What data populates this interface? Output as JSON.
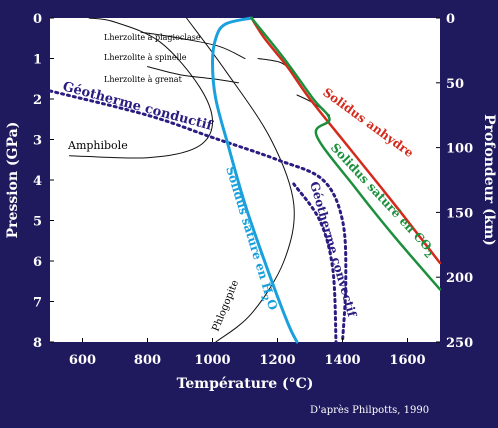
{
  "chart_data": {
    "type": "phase-diagram",
    "xlabel": "Température (°C)",
    "ylabel_left": "Pression (GPa)",
    "ylabel_right": "Profondeur (km)",
    "x_ticks": [
      "600",
      "800",
      "1000",
      "1200",
      "1400",
      "1600"
    ],
    "y_left_ticks": [
      "0",
      "1",
      "2",
      "3",
      "4",
      "5",
      "6",
      "7",
      "8"
    ],
    "y_right_ticks": [
      "0",
      "50",
      "100",
      "150",
      "200",
      "250"
    ],
    "xlim": [
      500,
      1700
    ],
    "ylim": [
      0,
      8
    ],
    "depth_lim": [
      0,
      250
    ],
    "credit": "D'après Philpotts, 1990",
    "labels": {
      "lherz_plag": "Lherzolite à plagioclase",
      "lherz_spin": "Lherzolite à spinelle",
      "lherz_gren": "Lherzolite à grenat",
      "geotherme_conductif": "Géotherme conductif",
      "amphibole": "Amphibole",
      "solidus_anhydre": "Solidus anhydre",
      "solidus_co2_main": "Solidus saturé en CO",
      "solidus_co2_sub": "2",
      "solidus_h2o_main": "Solidus saturé en H",
      "solidus_h2o_sub": "2",
      "solidus_h2o_end": "O",
      "geotherme_convectif": "Géotherme convectif",
      "phlogopite": "Phlogopite"
    },
    "colors": {
      "background": "#1f1a5e",
      "plot_bg": "#ffffff",
      "anhydre": "#d42a1c",
      "co2": "#1c8f3c",
      "h2o": "#1aa0dc",
      "geotherm": "#2a1c80",
      "boundary": "#111111"
    },
    "curves": {
      "solidus_anhydre": [
        [
          1120,
          0
        ],
        [
          1160,
          0.5
        ],
        [
          1230,
          1.2
        ],
        [
          1300,
          2
        ],
        [
          1420,
          3.2
        ],
        [
          1560,
          4.6
        ],
        [
          1700,
          6.05
        ]
      ],
      "solidus_co2": [
        [
          1120,
          0
        ],
        [
          1220,
          1
        ],
        [
          1310,
          2
        ],
        [
          1360,
          2.5
        ],
        [
          1320,
          2.9
        ],
        [
          1440,
          4.2
        ],
        [
          1560,
          5.4
        ],
        [
          1700,
          6.7
        ]
      ],
      "solidus_h2o": [
        [
          1120,
          0
        ],
        [
          1040,
          0.15
        ],
        [
          1010,
          0.5
        ],
        [
          1000,
          1.1
        ],
        [
          1010,
          2
        ],
        [
          1050,
          3.2
        ],
        [
          1100,
          4.6
        ],
        [
          1160,
          6
        ],
        [
          1230,
          7.5
        ],
        [
          1260,
          8
        ]
      ],
      "geotherme_conductif": [
        [
          500,
          1.8
        ],
        [
          800,
          2.4
        ],
        [
          1000,
          2.95
        ],
        [
          1200,
          3.5
        ],
        [
          1340,
          4.0
        ],
        [
          1400,
          5.0
        ],
        [
          1410,
          6.5
        ],
        [
          1400,
          8
        ]
      ],
      "geotherme_convectif_close": [
        [
          1250,
          4.1
        ],
        [
          1330,
          5.0
        ],
        [
          1370,
          6.2
        ],
        [
          1380,
          8
        ]
      ],
      "amphibole": [
        [
          560,
          3.4
        ],
        [
          800,
          3.45
        ],
        [
          950,
          3.2
        ],
        [
          1000,
          2.6
        ],
        [
          960,
          1.7
        ],
        [
          840,
          0.6
        ],
        [
          700,
          0.1
        ],
        [
          620,
          0
        ]
      ],
      "phlogopite": [
        [
          1010,
          8
        ],
        [
          1120,
          7.3
        ],
        [
          1220,
          6.0
        ],
        [
          1250,
          4.6
        ],
        [
          1180,
          3.0
        ],
        [
          1040,
          1.3
        ],
        [
          920,
          0
        ]
      ],
      "plag_spinel": [
        [
          780,
          0.35
        ],
        [
          900,
          0.5
        ],
        [
          1020,
          0.7
        ],
        [
          1100,
          1.0
        ]
      ],
      "spinel_garnet": [
        [
          800,
          1.2
        ],
        [
          900,
          1.4
        ],
        [
          1000,
          1.5
        ],
        [
          1080,
          1.6
        ]
      ],
      "extra_co2_boundary": [
        [
          1140,
          1.0
        ],
        [
          1210,
          1.1
        ],
        [
          1250,
          1.35
        ]
      ],
      "extra_carbonate": [
        [
          1260,
          1.9
        ],
        [
          1310,
          2.1
        ],
        [
          1360,
          2.4
        ]
      ]
    }
  }
}
